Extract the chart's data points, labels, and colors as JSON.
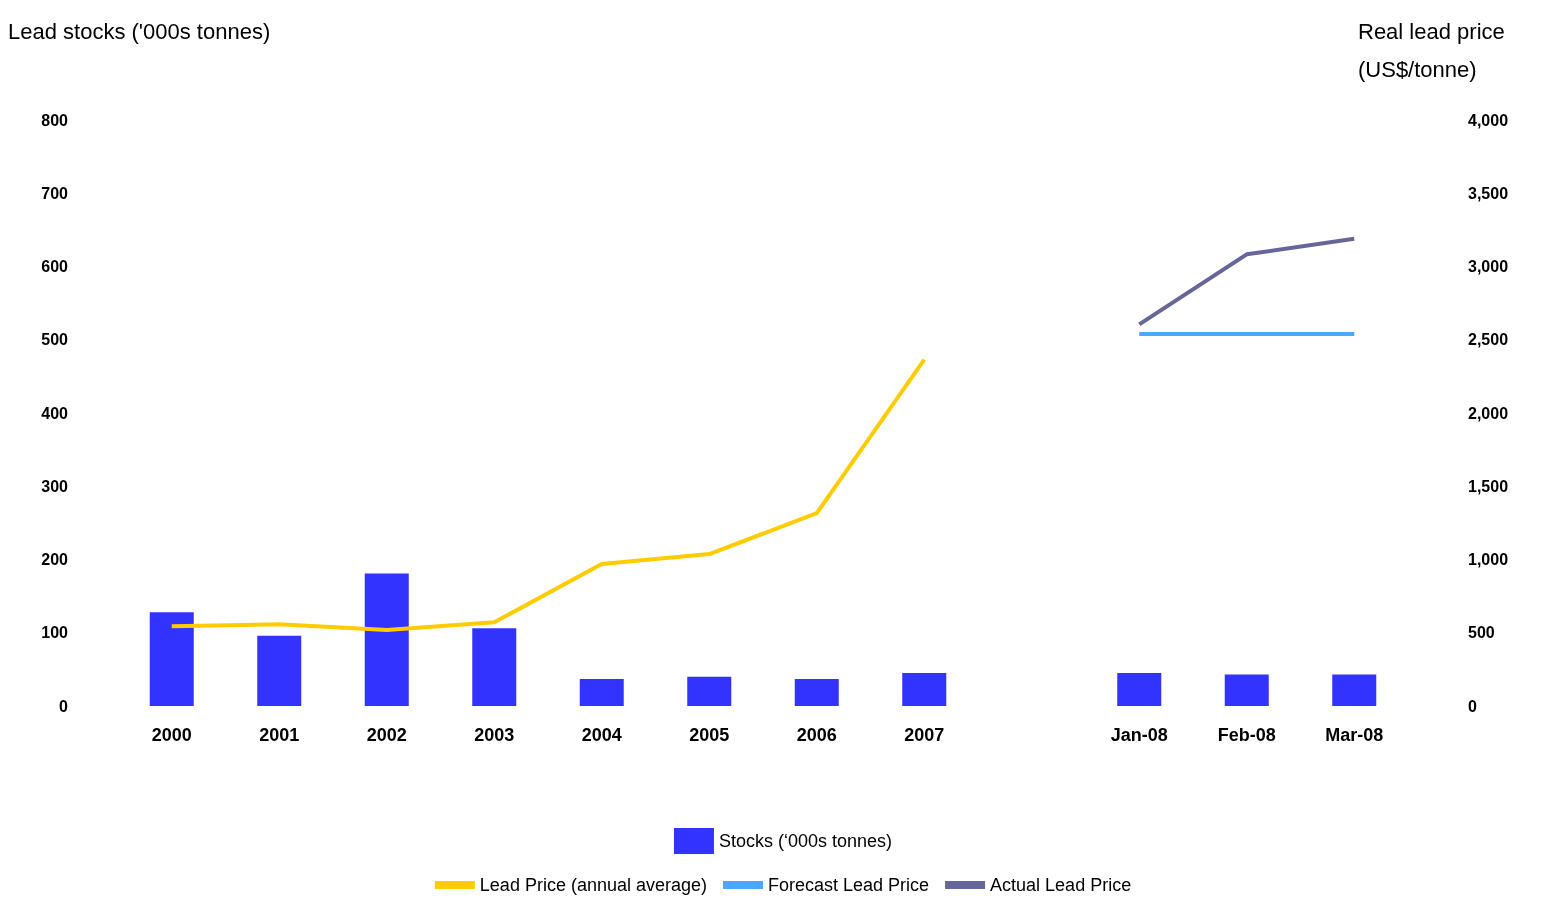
{
  "chart_data": {
    "type": "bar",
    "ylabel": "Lead stocks ('000s tonnes)",
    "y2label": "Real lead price (US$/tonne)",
    "categories": [
      "2000",
      "2001",
      "2002",
      "2003",
      "2004",
      "2005",
      "2006",
      "2007",
      null,
      "Jan-08",
      "Feb-08",
      "Mar-08"
    ],
    "series": [
      {
        "name": "Stocks (‘000s tonnes)",
        "color": "#3333ff",
        "values": [
          128,
          96,
          181,
          106,
          37,
          40,
          37,
          45,
          null,
          45,
          43,
          43
        ]
      },
      {
        "name": "Lead Price (annual average)",
        "type": "line",
        "axis": "y2",
        "color": "#ffcc00",
        "values": [
          545,
          558,
          518,
          571,
          970,
          1037,
          1316,
          2365,
          null,
          null,
          null,
          null
        ]
      },
      {
        "name": "Forecast Lead Price",
        "type": "line",
        "axis": "y2",
        "color": "#4da6ff",
        "values": [
          null,
          null,
          null,
          null,
          null,
          null,
          null,
          null,
          null,
          2540,
          2540,
          2540
        ]
      },
      {
        "name": "Actual Lead Price",
        "type": "line",
        "axis": "y2",
        "color": "#666699",
        "values": [
          null,
          null,
          null,
          null,
          null,
          null,
          null,
          null,
          null,
          2605,
          3083,
          3189
        ]
      }
    ],
    "ylim": [
      0,
      800
    ],
    "yticks": [
      0,
      100,
      200,
      300,
      400,
      500,
      600,
      700,
      800
    ],
    "y2lim": [
      0,
      4000
    ],
    "y2ticks": [
      0,
      500,
      {
        "value": 1000,
        "label": "1,000"
      },
      {
        "value": 1500,
        "label": "1,500"
      },
      {
        "value": 2000,
        "label": "2,000"
      },
      {
        "value": 2500,
        "label": "2,500"
      },
      {
        "value": 3000,
        "label": "3,000"
      },
      {
        "value": 3500,
        "label": "3,500"
      },
      {
        "value": 4000,
        "label": "4,000"
      }
    ],
    "legend": "bottom",
    "grid": false,
    "marker": "none"
  }
}
